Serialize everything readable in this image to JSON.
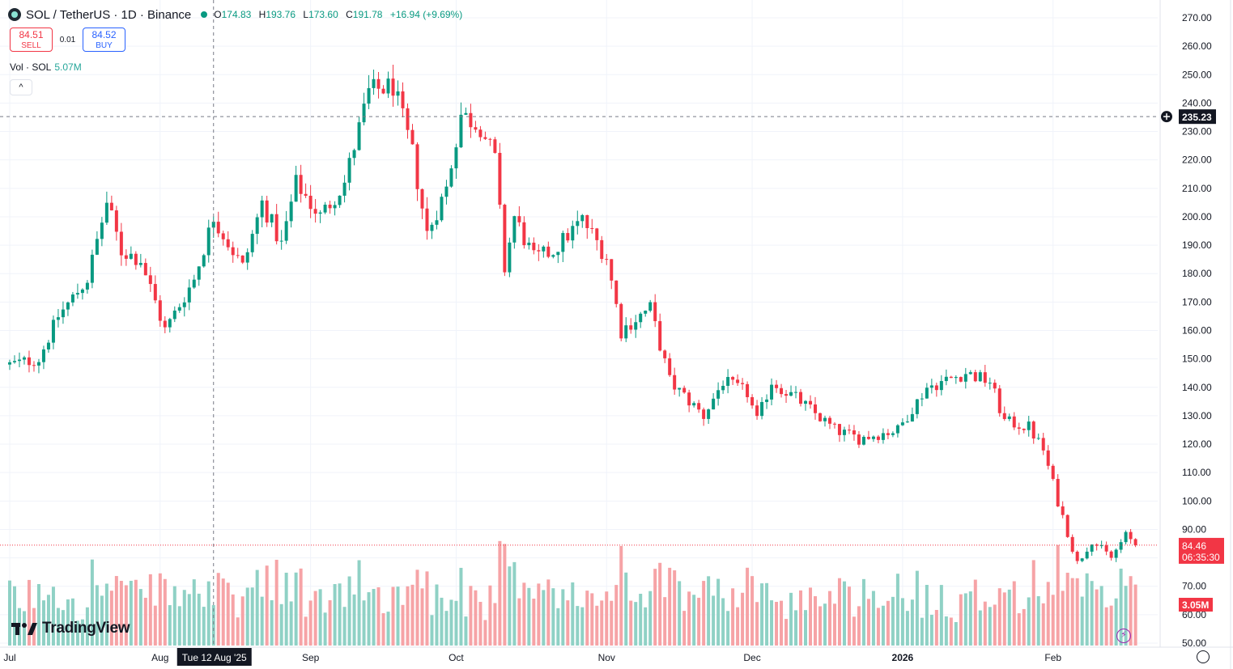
{
  "header": {
    "title": "SOL / TetherUS · 1D · Binance",
    "ohlc": {
      "o_label": "O",
      "o": "174.83",
      "h_label": "H",
      "h": "193.76",
      "l_label": "L",
      "l": "173.60",
      "c_label": "C",
      "c": "191.78",
      "change": "+16.94 (+9.69%)"
    }
  },
  "trade": {
    "sell_price": "84.51",
    "sell_label": "SELL",
    "spread": "0.01",
    "buy_price": "84.52",
    "buy_label": "BUY"
  },
  "volume_legend": {
    "label": "Vol · SOL",
    "value": "5.07M"
  },
  "collapse_icon": "chevron-up-icon",
  "logo": {
    "text": "TradingView",
    "icon": "tradingview-logo-icon"
  },
  "colors": {
    "up": "#089981",
    "down": "#f23645",
    "up_vol": "#8fd1c5",
    "down_vol": "#f6a3a6",
    "grid": "#f0f3fa",
    "crosshair": "#787b86"
  },
  "chart_data": {
    "type": "candlestick",
    "symbol": "SOL / TetherUS",
    "interval": "1D",
    "exchange": "Binance",
    "price_ticks": [
      "270.00",
      "260.00",
      "250.00",
      "240.00",
      "230.00",
      "220.00",
      "210.00",
      "200.00",
      "190.00",
      "180.00",
      "170.00",
      "160.00",
      "150.00",
      "140.00",
      "130.00",
      "120.00",
      "110.00",
      "100.00",
      "90.00",
      "80.00",
      "70.00",
      "60.00",
      "50.00"
    ],
    "price_range": [
      50,
      270
    ],
    "time_labels": [
      {
        "label": "Jul",
        "date": "2025-07-01"
      },
      {
        "label": "Aug",
        "date": "2025-08-01"
      },
      {
        "label": "Sep",
        "date": "2025-09-01"
      },
      {
        "label": "Oct",
        "date": "2025-10-01"
      },
      {
        "label": "Nov",
        "date": "2025-11-01"
      },
      {
        "label": "Dec",
        "date": "2025-12-01"
      },
      {
        "label": "2026",
        "date": "2026-01-01"
      },
      {
        "label": "Feb",
        "date": "2026-02-01"
      }
    ],
    "crosshair": {
      "date_label": "Tue 12 Aug '25",
      "date": "2025-08-12",
      "price_label": "235.23",
      "price": 235.23
    },
    "last_price": {
      "label": "84.46",
      "value": 84.46,
      "countdown": "06:35:30"
    },
    "last_volume": {
      "label": "3.05M"
    },
    "anchors": [
      {
        "date": "2025-07-01",
        "close": 148
      },
      {
        "date": "2025-07-07",
        "close": 150
      },
      {
        "date": "2025-07-11",
        "close": 165
      },
      {
        "date": "2025-07-17",
        "close": 178
      },
      {
        "date": "2025-07-21",
        "close": 205
      },
      {
        "date": "2025-07-24",
        "close": 188
      },
      {
        "date": "2025-07-28",
        "close": 185
      },
      {
        "date": "2025-08-02",
        "close": 160
      },
      {
        "date": "2025-08-08",
        "close": 178
      },
      {
        "date": "2025-08-12",
        "close": 200
      },
      {
        "date": "2025-08-18",
        "close": 182
      },
      {
        "date": "2025-08-22",
        "close": 205
      },
      {
        "date": "2025-08-26",
        "close": 190
      },
      {
        "date": "2025-08-29",
        "close": 212
      },
      {
        "date": "2025-09-03",
        "close": 200
      },
      {
        "date": "2025-09-08",
        "close": 212
      },
      {
        "date": "2025-09-13",
        "close": 244
      },
      {
        "date": "2025-09-18",
        "close": 246
      },
      {
        "date": "2025-09-22",
        "close": 222
      },
      {
        "date": "2025-09-25",
        "close": 194
      },
      {
        "date": "2025-09-29",
        "close": 210
      },
      {
        "date": "2025-10-02",
        "close": 236
      },
      {
        "date": "2025-10-06",
        "close": 232
      },
      {
        "date": "2025-10-09",
        "close": 220
      },
      {
        "date": "2025-10-11",
        "close": 182
      },
      {
        "date": "2025-10-13",
        "close": 200
      },
      {
        "date": "2025-10-17",
        "close": 185
      },
      {
        "date": "2025-10-21",
        "close": 188
      },
      {
        "date": "2025-10-27",
        "close": 199
      },
      {
        "date": "2025-11-01",
        "close": 186
      },
      {
        "date": "2025-11-04",
        "close": 160
      },
      {
        "date": "2025-11-10",
        "close": 168
      },
      {
        "date": "2025-11-14",
        "close": 142
      },
      {
        "date": "2025-11-21",
        "close": 130
      },
      {
        "date": "2025-11-25",
        "close": 142
      },
      {
        "date": "2025-11-30",
        "close": 138
      },
      {
        "date": "2025-12-02",
        "close": 128
      },
      {
        "date": "2025-12-05",
        "close": 142
      },
      {
        "date": "2025-12-11",
        "close": 135
      },
      {
        "date": "2025-12-18",
        "close": 125
      },
      {
        "date": "2025-12-23",
        "close": 122
      },
      {
        "date": "2025-12-31",
        "close": 125
      },
      {
        "date": "2026-01-06",
        "close": 140
      },
      {
        "date": "2026-01-14",
        "close": 145
      },
      {
        "date": "2026-01-19",
        "close": 142
      },
      {
        "date": "2026-01-22",
        "close": 128
      },
      {
        "date": "2026-01-27",
        "close": 126
      },
      {
        "date": "2026-01-30",
        "close": 118
      },
      {
        "date": "2026-02-02",
        "close": 100
      },
      {
        "date": "2026-02-06",
        "close": 78
      },
      {
        "date": "2026-02-09",
        "close": 86
      },
      {
        "date": "2026-02-13",
        "close": 80
      },
      {
        "date": "2026-02-16",
        "close": 88
      },
      {
        "date": "2026-02-18",
        "close": 84.46
      }
    ]
  }
}
